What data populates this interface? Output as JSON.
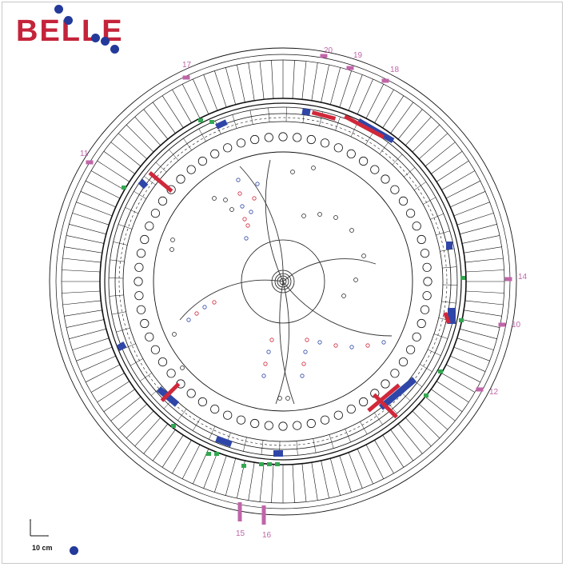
{
  "logo": {
    "text": "BELLE",
    "brand_color": "#c4243a",
    "dot_color": "#233a9a"
  },
  "scale": {
    "label": "10 cm"
  },
  "segment_labels": [
    "20",
    "19",
    "18",
    "17",
    "11",
    "15",
    "16",
    "14",
    "10",
    "12"
  ],
  "colors": {
    "outline": "#111111",
    "track_red": "#d0283a",
    "track_blue": "#2f46a8",
    "hit_green": "#33a852",
    "muon_pink": "#c065a8"
  }
}
